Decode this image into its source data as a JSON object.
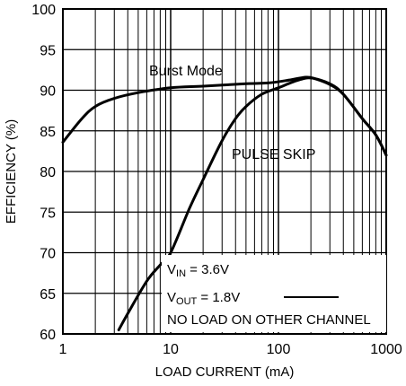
{
  "chart_data": {
    "type": "line",
    "xlabel": "LOAD CURRENT (mA)",
    "ylabel": "EFFICIENCY (%)",
    "x_scale": "log",
    "xlim": [
      1,
      1000
    ],
    "ylim": [
      60,
      100
    ],
    "x_ticks": [
      "1",
      "10",
      "100",
      "1000"
    ],
    "y_ticks": [
      "60",
      "65",
      "70",
      "75",
      "80",
      "85",
      "90",
      "95",
      "100"
    ],
    "grid": true,
    "series": [
      {
        "name": "Burst Mode",
        "x": [
          1,
          1.5,
          2,
          3,
          5,
          10,
          20,
          50,
          80,
          120,
          180,
          220,
          300,
          400,
          600,
          800,
          1000
        ],
        "y": [
          83.6,
          86.5,
          88.0,
          89.0,
          89.7,
          90.3,
          90.5,
          90.8,
          90.9,
          91.2,
          91.6,
          91.4,
          90.7,
          89.5,
          86.5,
          84.5,
          82.0
        ]
      },
      {
        "name": "PULSE SKIP",
        "x": [
          3.3,
          4,
          6,
          8,
          10,
          15,
          20,
          30,
          40,
          50,
          70,
          100,
          150,
          200,
          300,
          400,
          600,
          800,
          1000
        ],
        "y": [
          60.5,
          62.5,
          66.5,
          68.5,
          70.0,
          75.5,
          79.0,
          83.8,
          86.5,
          88.0,
          89.5,
          90.3,
          91.2,
          91.5,
          90.8,
          89.5,
          86.5,
          84.5,
          82.0
        ]
      }
    ],
    "annotations": {
      "burst_label": "Burst Mode",
      "pulse_label": "PULSE SKIP",
      "vin_main": "V",
      "vin_sub": "IN",
      "vin_value": " = 3.6V",
      "vout_main": "V",
      "vout_sub": "OUT",
      "vout_value": " = 1.8V",
      "no_load": "NO LOAD ON OTHER CHANNEL"
    }
  }
}
